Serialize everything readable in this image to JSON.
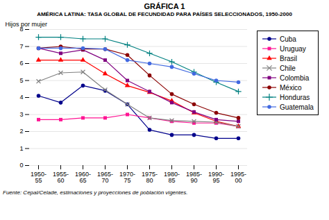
{
  "chart_data": {
    "type": "line",
    "title": "GRÁFICA 1",
    "subtitle": "AMÉRICA LATINA: TASA GLOBAL DE FECUNDIDAD PARA PAÍSES SELECCIONADOS, 1950-2000",
    "caption": "Fuente: Cepal/Celade, estimaciones y proyecciones de población vigentes.",
    "y_label": "Hijos por mujer",
    "categories": [
      "1950-\n55",
      "1955-\n60",
      "1960-\n65",
      "1965-\n70",
      "1970-\n75",
      "1975-\n80",
      "1980-\n85",
      "1985-\n90",
      "1990-\n95",
      "1995-\n00"
    ],
    "ylim": [
      0,
      8
    ],
    "yticks": [
      0,
      1,
      2,
      3,
      4,
      5,
      6,
      7,
      8
    ],
    "grid": true,
    "legend": "right",
    "series": [
      {
        "name": "Cuba",
        "color": "#00008B",
        "marker": "circle",
        "values": [
          4.1,
          3.7,
          4.7,
          4.4,
          3.6,
          2.1,
          1.8,
          1.8,
          1.6,
          1.6
        ]
      },
      {
        "name": "Uruguay",
        "color": "#FF1493",
        "marker": "square",
        "values": [
          2.7,
          2.7,
          2.8,
          2.8,
          3.0,
          2.8,
          2.6,
          2.5,
          2.5,
          2.3
        ]
      },
      {
        "name": "Brasil",
        "color": "#FF0000",
        "marker": "triangle",
        "values": [
          6.2,
          6.2,
          6.2,
          5.4,
          4.7,
          4.3,
          3.8,
          3.1,
          2.6,
          2.3
        ]
      },
      {
        "name": "Chile",
        "color": "#808080",
        "marker": "times",
        "values": [
          4.95,
          5.45,
          5.5,
          4.45,
          3.6,
          2.8,
          2.65,
          2.6,
          2.55,
          2.3
        ]
      },
      {
        "name": "Colombia",
        "color": "#800080",
        "marker": "square",
        "values": [
          6.9,
          6.6,
          6.8,
          6.2,
          5.0,
          4.35,
          3.7,
          3.15,
          2.7,
          2.6
        ]
      },
      {
        "name": "México",
        "color": "#8B0000",
        "marker": "circle",
        "values": [
          6.9,
          7.0,
          6.85,
          6.85,
          6.5,
          5.3,
          4.2,
          3.6,
          3.1,
          2.8
        ]
      },
      {
        "name": "Honduras",
        "color": "#008080",
        "marker": "plus",
        "values": [
          7.55,
          7.55,
          7.45,
          7.45,
          7.1,
          6.6,
          6.1,
          5.5,
          4.9,
          4.35
        ]
      },
      {
        "name": "Guatemala",
        "color": "#4169E1",
        "marker": "circle",
        "values": [
          6.9,
          6.9,
          6.9,
          6.85,
          6.2,
          6.0,
          5.8,
          5.4,
          5.0,
          4.9
        ]
      }
    ]
  }
}
